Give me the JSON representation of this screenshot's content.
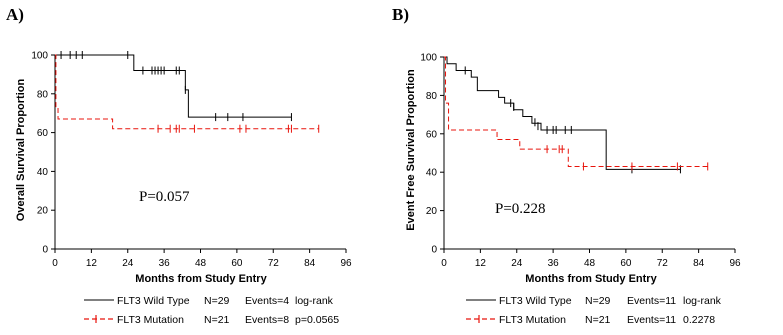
{
  "chart_data": [
    {
      "type": "line",
      "panel_label": "A)",
      "xlabel": "Months from Study Entry",
      "ylabel": "Overall Survival Proportion",
      "xlim": [
        0,
        96
      ],
      "ylim": [
        0,
        100
      ],
      "xticks": [
        0,
        12,
        24,
        36,
        48,
        60,
        72,
        84,
        96
      ],
      "yticks": [
        0,
        20,
        40,
        60,
        80,
        100
      ],
      "annotation": "P=0.057",
      "legend_rows": [
        {
          "name": "FLT3 Wild Type",
          "n": "N=29",
          "events": "Events=4",
          "test": "log-rank"
        },
        {
          "name": "FLT3 Mutation",
          "n": "N=21",
          "events": "Events=8",
          "test": "p=0.0565"
        }
      ],
      "series": [
        {
          "name": "FLT3 Wild Type",
          "color": "#000000",
          "dash": "solid",
          "steps": [
            [
              0,
              100
            ],
            [
              25,
              100
            ],
            [
              26,
              92
            ],
            [
              42,
              92
            ],
            [
              43,
              82
            ],
            [
              44,
              68
            ],
            [
              78,
              68
            ]
          ],
          "censored": [
            [
              2,
              100
            ],
            [
              5,
              100
            ],
            [
              7,
              100
            ],
            [
              9,
              100
            ],
            [
              24,
              100
            ],
            [
              29,
              92
            ],
            [
              32,
              92
            ],
            [
              33,
              92
            ],
            [
              34,
              92
            ],
            [
              35,
              92
            ],
            [
              36,
              92
            ],
            [
              40,
              92
            ],
            [
              41,
              92
            ],
            [
              43,
              82
            ],
            [
              53,
              68
            ],
            [
              57,
              68
            ],
            [
              62,
              68
            ],
            [
              78,
              68
            ]
          ]
        },
        {
          "name": "FLT3 Mutation",
          "color": "#e8140c",
          "dash": "dashed",
          "steps": [
            [
              0,
              100
            ],
            [
              0.3,
              73
            ],
            [
              1,
              67
            ],
            [
              18.5,
              67
            ],
            [
              19,
              62
            ],
            [
              87,
              62
            ]
          ],
          "censored": [
            [
              34,
              62
            ],
            [
              38,
              62
            ],
            [
              40,
              62
            ],
            [
              41,
              62
            ],
            [
              46,
              62
            ],
            [
              61,
              62
            ],
            [
              63,
              62
            ],
            [
              77,
              62
            ],
            [
              78,
              62
            ],
            [
              87,
              62
            ]
          ]
        }
      ]
    },
    {
      "type": "line",
      "panel_label": "B)",
      "xlabel": "Months from Study Entry",
      "ylabel": "Event Free Survival Proportion",
      "xlim": [
        0,
        96
      ],
      "ylim": [
        0,
        100
      ],
      "xticks": [
        0,
        12,
        24,
        36,
        48,
        60,
        72,
        84,
        96
      ],
      "yticks": [
        0,
        20,
        40,
        60,
        80,
        100
      ],
      "annotation": "P=0.228",
      "legend_rows": [
        {
          "name": "FLT3 Wild Type",
          "n": "N=29",
          "events": "Events=11",
          "test": "log-rank"
        },
        {
          "name": "FLT3 Mutation",
          "n": "N=21",
          "events": "Events=11",
          "test": "0.2278"
        }
      ],
      "series": [
        {
          "name": "FLT3 Wild Type",
          "color": "#000000",
          "dash": "solid",
          "steps": [
            [
              0,
              100
            ],
            [
              1,
              96.5
            ],
            [
              4,
              93
            ],
            [
              9,
              89.5
            ],
            [
              11,
              82.5
            ],
            [
              18,
              79
            ],
            [
              20,
              76
            ],
            [
              23,
              72.5
            ],
            [
              26,
              69
            ],
            [
              29,
              65.5
            ],
            [
              32,
              62
            ],
            [
              53,
              62
            ],
            [
              53.5,
              41.5
            ],
            [
              78,
              41.5
            ]
          ],
          "censored": [
            [
              7,
              93
            ],
            [
              22,
              76
            ],
            [
              23,
              74
            ],
            [
              30,
              66
            ],
            [
              31,
              64
            ],
            [
              34,
              62
            ],
            [
              36,
              62
            ],
            [
              37,
              62
            ],
            [
              40,
              62
            ],
            [
              42,
              62
            ],
            [
              62,
              41.5
            ],
            [
              78,
              41.5
            ]
          ]
        },
        {
          "name": "FLT3 Mutation",
          "color": "#e8140c",
          "dash": "dashed",
          "steps": [
            [
              0,
              100
            ],
            [
              0.5,
              76
            ],
            [
              1.5,
              62
            ],
            [
              16,
              62
            ],
            [
              17.5,
              57
            ],
            [
              24,
              57
            ],
            [
              25,
              52
            ],
            [
              40.5,
              52
            ],
            [
              41,
              43
            ],
            [
              87,
              43
            ]
          ],
          "censored": [
            [
              34,
              52
            ],
            [
              38,
              52
            ],
            [
              39,
              52
            ],
            [
              46,
              43
            ],
            [
              62,
              43
            ],
            [
              77,
              43
            ],
            [
              87,
              43
            ]
          ]
        }
      ]
    }
  ]
}
